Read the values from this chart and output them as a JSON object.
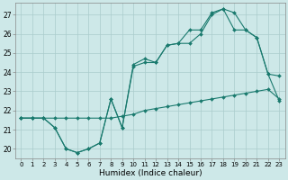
{
  "xlabel": "Humidex (Indice chaleur)",
  "background_color": "#cde8e8",
  "grid_color": "#aacccc",
  "line_color": "#1a7a6e",
  "xlim": [
    -0.5,
    23.5
  ],
  "ylim": [
    19.5,
    27.6
  ],
  "xticks": [
    0,
    1,
    2,
    3,
    4,
    5,
    6,
    7,
    8,
    9,
    10,
    11,
    12,
    13,
    14,
    15,
    16,
    17,
    18,
    19,
    20,
    21,
    22,
    23
  ],
  "yticks": [
    20,
    21,
    22,
    23,
    24,
    25,
    26,
    27
  ],
  "line1_x": [
    0,
    1,
    2,
    3,
    4,
    5,
    6,
    7,
    8,
    9,
    10,
    11,
    12,
    13,
    14,
    15,
    16,
    17,
    18,
    19,
    20,
    21,
    22,
    23
  ],
  "line1_y": [
    21.6,
    21.6,
    21.6,
    21.6,
    21.6,
    21.6,
    21.6,
    21.6,
    21.6,
    21.7,
    21.8,
    22.0,
    22.1,
    22.2,
    22.3,
    22.4,
    22.5,
    22.6,
    22.7,
    22.8,
    22.9,
    23.0,
    23.1,
    22.6
  ],
  "line2_x": [
    0,
    1,
    2,
    3,
    4,
    5,
    6,
    7,
    8,
    9,
    10,
    11,
    12,
    13,
    14,
    15,
    16,
    17,
    18,
    19,
    20,
    21,
    22,
    23
  ],
  "line2_y": [
    21.6,
    21.6,
    21.6,
    21.1,
    20.0,
    19.8,
    20.0,
    20.3,
    22.6,
    21.1,
    24.4,
    24.7,
    24.5,
    25.4,
    25.5,
    26.2,
    26.2,
    27.1,
    27.3,
    26.2,
    26.2,
    25.8,
    23.9,
    22.5
  ],
  "line3_x": [
    0,
    1,
    2,
    3,
    4,
    5,
    6,
    7,
    8,
    9,
    10,
    11,
    12,
    13,
    14,
    15,
    16,
    17,
    18,
    19,
    20,
    21,
    22,
    23
  ],
  "line3_y": [
    21.6,
    21.6,
    21.6,
    21.1,
    20.0,
    19.8,
    20.0,
    20.3,
    22.6,
    21.1,
    24.3,
    24.5,
    24.5,
    25.4,
    25.5,
    25.5,
    26.0,
    27.0,
    27.3,
    27.1,
    26.2,
    25.8,
    23.9,
    23.8
  ]
}
